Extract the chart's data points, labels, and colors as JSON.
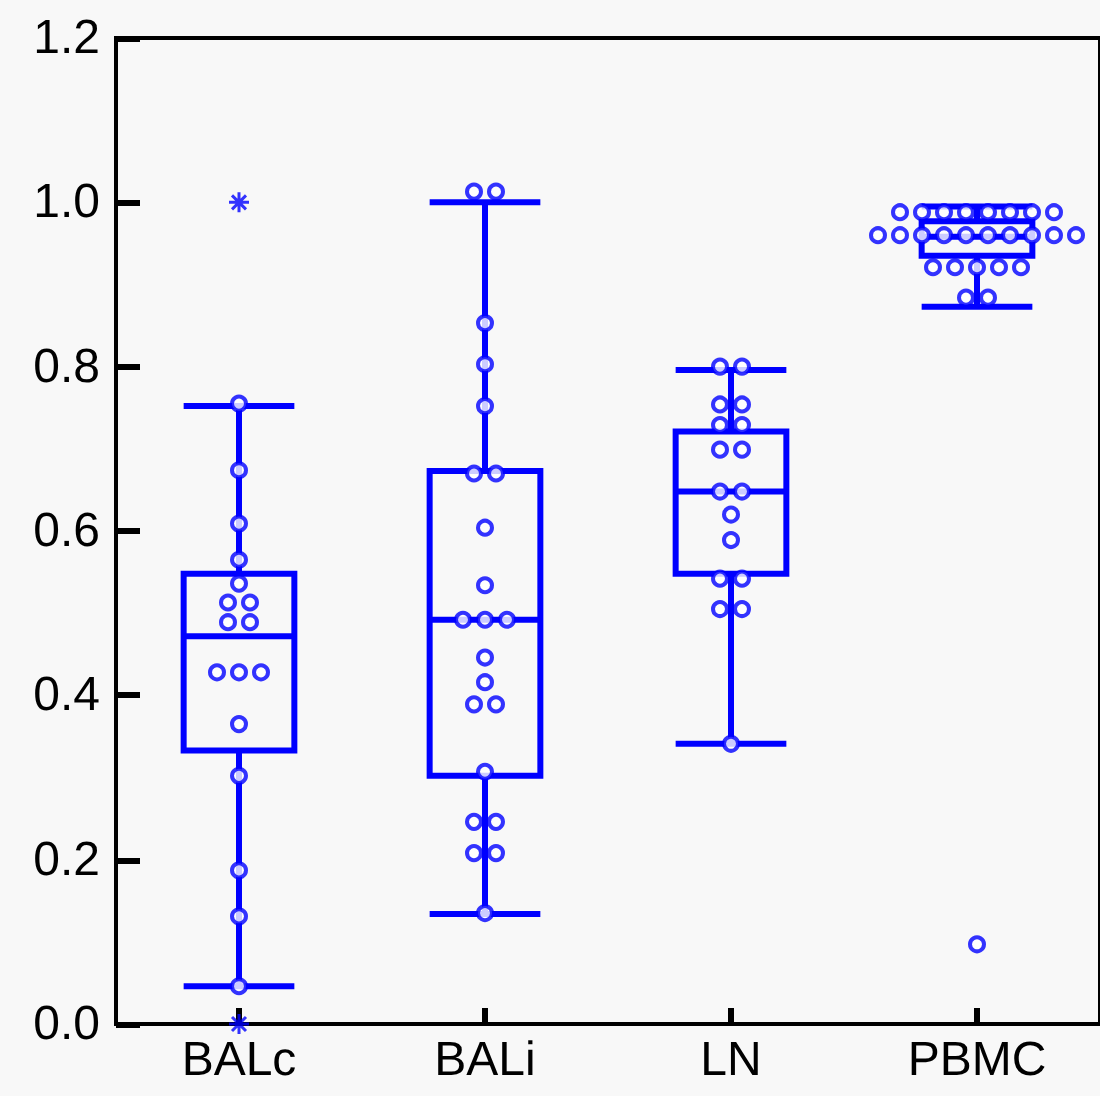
{
  "chart_data": {
    "type": "box",
    "categories": [
      "BALc",
      "BALi",
      "LN",
      "PBMC"
    ],
    "boxes": [
      {
        "low": 0.046,
        "q1": 0.333,
        "median": 0.472,
        "q3": 0.548,
        "high": 0.752,
        "outliers": [
          1.0,
          0.0
        ]
      },
      {
        "low": 0.134,
        "q1": 0.302,
        "median": 0.492,
        "q3": 0.673,
        "high": 1.0
      },
      {
        "low": 0.341,
        "q1": 0.548,
        "median": 0.648,
        "q3": 0.721,
        "high": 0.796
      },
      {
        "low": 0.873,
        "q1": 0.935,
        "median": 0.958,
        "q3": 0.977,
        "high": 0.995
      }
    ],
    "color": "#0000ff",
    "series": [
      {
        "type": "scatter",
        "color": "#0000ff",
        "marker": "circle",
        "x": [
          "BALc",
          "BALc",
          "BALc",
          "BALc",
          "BALc",
          "BALc",
          "BALc",
          "BALc",
          "BALc",
          "BALc",
          "BALc",
          "BALc",
          "BALc",
          "BALc",
          "BALc",
          "BALc",
          "BALc",
          "BALi",
          "BALi",
          "BALi",
          "BALi",
          "BALi",
          "BALi",
          "BALi",
          "BALi",
          "BALi",
          "BALi",
          "BALi",
          "BALi",
          "BALi",
          "BALi",
          "BALi",
          "BALi",
          "BALi",
          "BALi",
          "BALi",
          "BALi",
          "BALi",
          "BALi",
          "LN",
          "LN",
          "LN",
          "LN",
          "LN",
          "LN",
          "LN",
          "LN",
          "LN",
          "LN",
          "LN",
          "LN",
          "LN",
          "LN",
          "LN",
          "LN",
          "LN",
          "PBMC",
          "PBMC",
          "PBMC",
          "PBMC",
          "PBMC",
          "PBMC",
          "PBMC",
          "PBMC",
          "PBMC",
          "PBMC",
          "PBMC",
          "PBMC",
          "PBMC",
          "PBMC",
          "PBMC",
          "PBMC",
          "PBMC",
          "PBMC",
          "PBMC",
          "PBMC",
          "PBMC",
          "PBMC",
          "PBMC",
          "PBMC",
          "PBMC",
          "PBMC"
        ],
        "values": [
          0.755,
          0.674,
          0.609,
          0.565,
          0.536,
          0.513,
          0.513,
          0.489,
          0.489,
          0.428,
          0.428,
          0.428,
          0.365,
          0.302,
          0.187,
          0.131,
          0.046,
          1.013,
          1.013,
          0.853,
          0.803,
          0.752,
          0.67,
          0.67,
          0.604,
          0.534,
          0.492,
          0.492,
          0.492,
          0.446,
          0.416,
          0.389,
          0.389,
          0.307,
          0.246,
          0.246,
          0.208,
          0.208,
          0.135,
          0.8,
          0.8,
          0.754,
          0.754,
          0.729,
          0.729,
          0.699,
          0.699,
          0.648,
          0.648,
          0.62,
          0.589,
          0.542,
          0.542,
          0.505,
          0.505,
          0.341,
          0.988,
          0.988,
          0.988,
          0.988,
          0.988,
          0.988,
          0.988,
          0.988,
          0.96,
          0.96,
          0.96,
          0.96,
          0.96,
          0.96,
          0.96,
          0.96,
          0.96,
          0.96,
          0.921,
          0.921,
          0.921,
          0.921,
          0.921,
          0.884,
          0.884,
          0.097
        ]
      }
    ],
    "ylim": [
      0,
      1.2
    ],
    "yticks": [
      {
        "value": 0,
        "label": "0.0"
      },
      {
        "value": 0.2,
        "label": "0.2"
      },
      {
        "value": 0.4,
        "label": "0.4"
      },
      {
        "value": 0.6,
        "label": "0.6"
      },
      {
        "value": 0.8,
        "label": "0.8"
      },
      {
        "value": 1.0,
        "label": "1.0"
      },
      {
        "value": 1.2,
        "label": "1.2"
      }
    ],
    "grid": false
  }
}
